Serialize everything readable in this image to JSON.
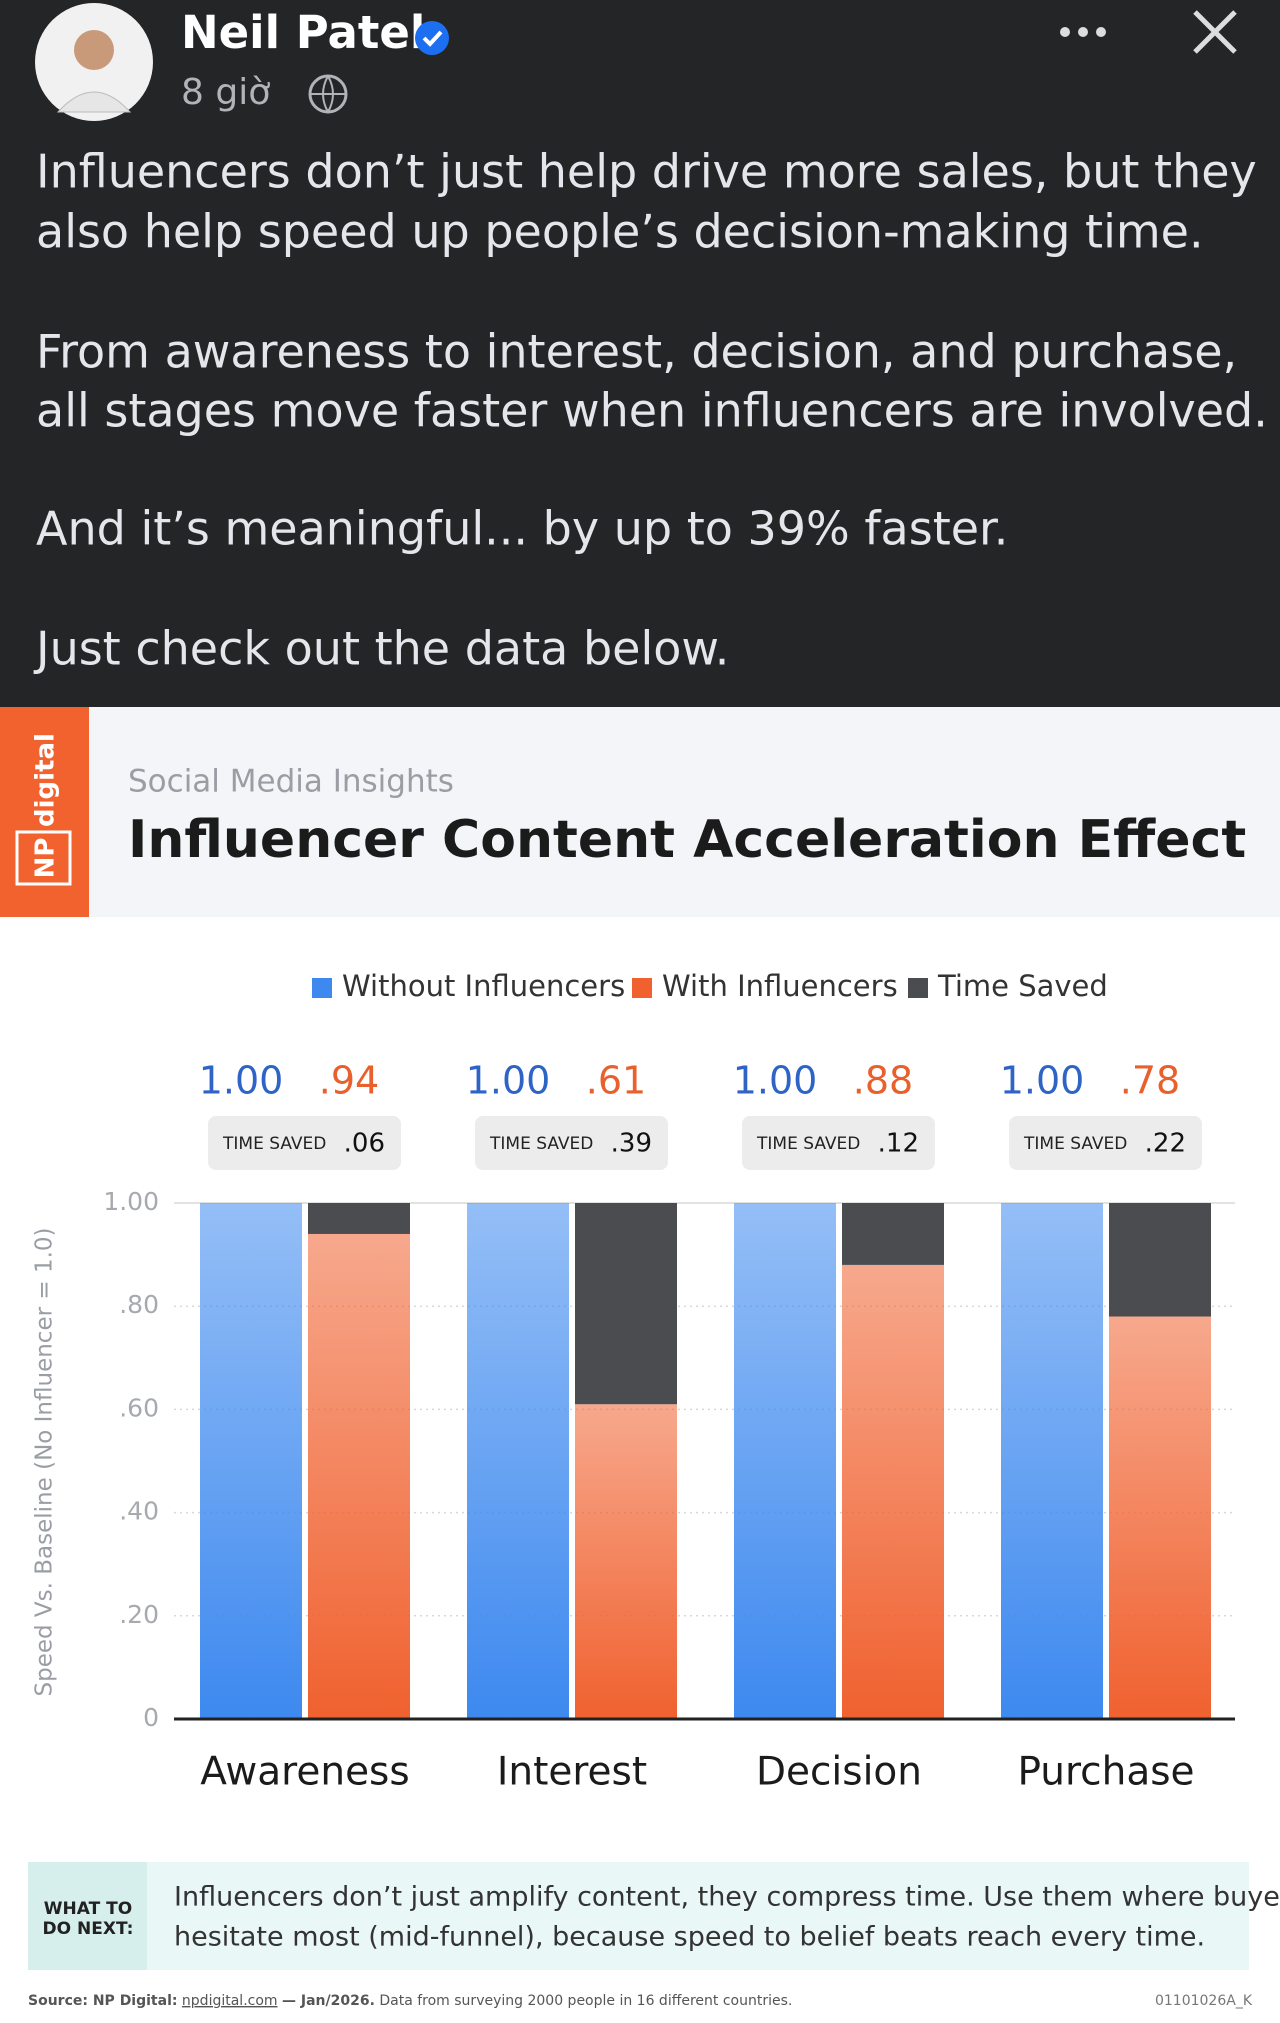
{
  "post": {
    "author": "Neil Patel",
    "time": "8 giờ",
    "paragraphs": [
      [
        "Influencers don’t just help drive more sales, but they",
        "also help speed up people’s decision-making time."
      ],
      [
        "From awareness to interest, decision, and purchase,",
        "all stages move faster when influencers are involved."
      ],
      [
        "And it’s meaningful... by up to 39% faster."
      ],
      [
        "Just check out the data below."
      ]
    ]
  },
  "chart_data": {
    "type": "bar",
    "brand": [
      "NP",
      "digital"
    ],
    "subtitle": "Social Media Insights",
    "title": "Influencer Content Acceleration Effect",
    "y_label": "Speed Vs. Baseline (No Influencer = 1.0)",
    "categories": [
      "Awareness",
      "Interest",
      "Decision",
      "Purchase"
    ],
    "series": [
      {
        "name": "Without Influencers",
        "color": "#3d89ef",
        "values": [
          1,
          1,
          1,
          1
        ],
        "value_labels": [
          "1.00",
          "1.00",
          "1.00",
          "1.00"
        ]
      },
      {
        "name": "With Influencers",
        "color": "#f0612f",
        "values": [
          0.94,
          0.61,
          0.88,
          0.78
        ],
        "value_labels": [
          ".94",
          ".61",
          ".88",
          ".78"
        ]
      },
      {
        "name": "Time Saved",
        "color": "#4a4c50",
        "values": [
          0.06,
          0.39,
          0.12,
          0.22
        ],
        "value_labels": [
          ".06",
          ".39",
          ".12",
          ".22"
        ]
      }
    ],
    "time_saved_label": "TIME SAVED",
    "ylim": [
      0,
      1
    ],
    "yticks": [
      0,
      {
        "value": 0.2,
        "label": ".20"
      },
      {
        "value": 0.4,
        "label": ".40"
      },
      {
        "value": 0.6,
        "label": ".60"
      },
      {
        "value": 0.8,
        "label": ".80"
      },
      {
        "value": 1,
        "label": "1.00"
      }
    ],
    "grid": true,
    "note": {
      "heading": [
        "WHAT TO",
        "DO NEXT:"
      ],
      "lines": [
        "Influencers don’t just amplify content, they compress time. Use them where buyers",
        "hesitate most (mid-funnel), because speed to belief beats reach every time."
      ]
    },
    "source": {
      "prefix": "Source: NP Digital:",
      "link": "npdigital.com",
      "date": "— Jan/2026.",
      "text": "Data from surveying 2000 people in 16 different countries.",
      "code": "01101026A_K"
    }
  }
}
